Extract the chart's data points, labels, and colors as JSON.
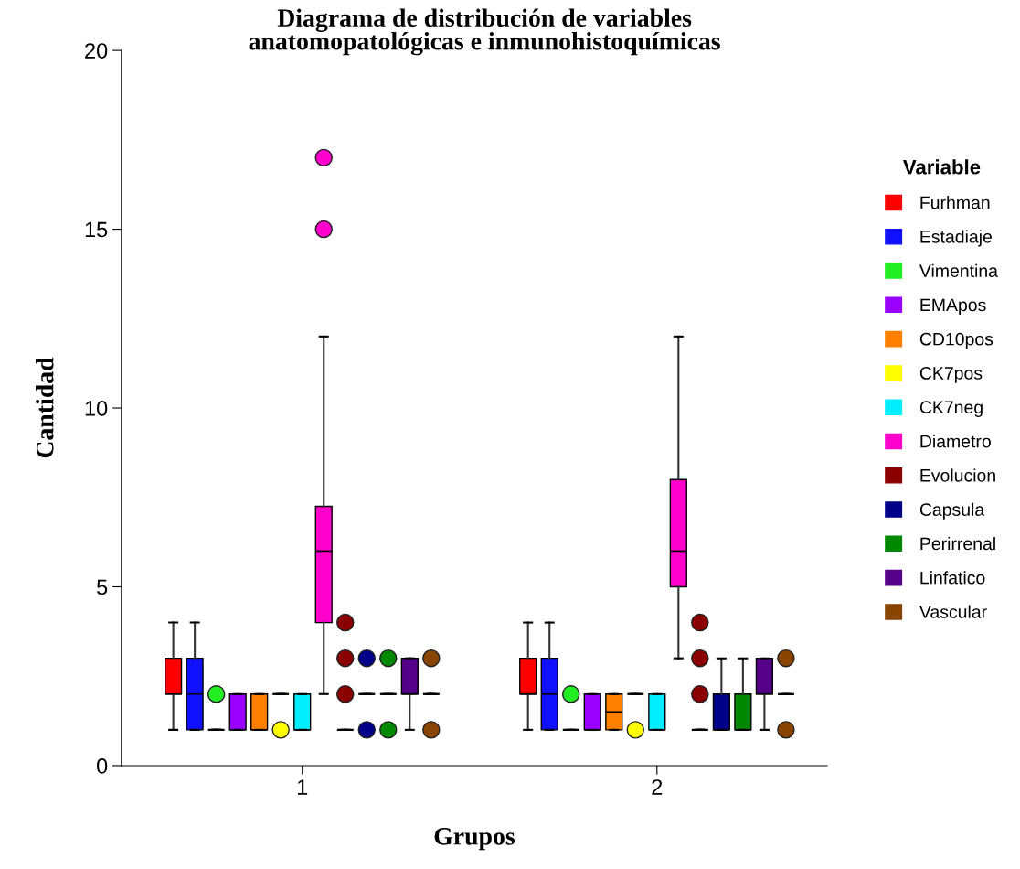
{
  "chart_data": {
    "type": "box",
    "title": "Diagrama de distribución de variables\nanatomopatológicas e inmunohistoquímicas",
    "xlabel": "Grupos",
    "ylabel": "Cantidad",
    "legend_title": "Variable",
    "categories": [
      "1",
      "2"
    ],
    "ylim": [
      0,
      20
    ],
    "yticks": [
      0,
      5,
      10,
      15,
      20
    ],
    "legend": "right",
    "series": [
      {
        "name": "Furhman",
        "color": "#ff0000",
        "boxes": [
          {
            "low": 1,
            "q1": 2,
            "median": 2,
            "q3": 3,
            "high": 4
          },
          {
            "low": 1,
            "q1": 2,
            "median": 2,
            "q3": 3,
            "high": 4
          }
        ]
      },
      {
        "name": "Estadiaje",
        "color": "#1010ff",
        "boxes": [
          {
            "low": 1,
            "q1": 1,
            "median": 2,
            "q3": 3,
            "high": 4
          },
          {
            "low": 1,
            "q1": 1,
            "median": 2,
            "q3": 3,
            "high": 4
          }
        ]
      },
      {
        "name": "Vimentina",
        "color": "#22ee22",
        "boxes": [
          {
            "low": 1,
            "q1": 1,
            "median": 1,
            "q3": 1,
            "high": 1,
            "outliers": [
              2
            ]
          },
          {
            "low": 1,
            "q1": 1,
            "median": 1,
            "q3": 1,
            "high": 1,
            "outliers": [
              2
            ]
          }
        ]
      },
      {
        "name": "EMApos",
        "color": "#9900ff",
        "boxes": [
          {
            "low": 1,
            "q1": 1,
            "median": 1,
            "q3": 2,
            "high": 2
          },
          {
            "low": 1,
            "q1": 1,
            "median": 1,
            "q3": 2,
            "high": 2
          }
        ]
      },
      {
        "name": "CD10pos",
        "color": "#ff8000",
        "boxes": [
          {
            "low": 1,
            "q1": 1,
            "median": 1,
            "q3": 2,
            "high": 2
          },
          {
            "low": 1,
            "q1": 1,
            "median": 1.5,
            "q3": 2,
            "high": 2
          }
        ]
      },
      {
        "name": "CK7pos",
        "color": "#ffff00",
        "boxes": [
          {
            "low": 2,
            "q1": 2,
            "median": 2,
            "q3": 2,
            "high": 2,
            "outliers": [
              1
            ]
          },
          {
            "low": 2,
            "q1": 2,
            "median": 2,
            "q3": 2,
            "high": 2,
            "outliers": [
              1
            ]
          }
        ]
      },
      {
        "name": "CK7neg",
        "color": "#00eeff",
        "boxes": [
          {
            "low": 1,
            "q1": 1,
            "median": 1,
            "q3": 2,
            "high": 2
          },
          {
            "low": 1,
            "q1": 1,
            "median": 1,
            "q3": 2,
            "high": 2
          }
        ]
      },
      {
        "name": "Diametro",
        "color": "#ff00cc",
        "boxes": [
          {
            "low": 2,
            "q1": 4,
            "median": 6,
            "q3": 7.25,
            "high": 12,
            "outliers": [
              15,
              17
            ]
          },
          {
            "low": 3,
            "q1": 5,
            "median": 6,
            "q3": 8,
            "high": 12
          }
        ]
      },
      {
        "name": "Evolucion",
        "color": "#8b0000",
        "boxes": [
          {
            "low": 1,
            "q1": 1,
            "median": 1,
            "q3": 1,
            "high": 1,
            "outliers": [
              2,
              3,
              4
            ]
          },
          {
            "low": 1,
            "q1": 1,
            "median": 1,
            "q3": 1,
            "high": 1,
            "outliers": [
              2,
              3,
              4
            ]
          }
        ]
      },
      {
        "name": "Capsula",
        "color": "#000088",
        "boxes": [
          {
            "low": 2,
            "q1": 2,
            "median": 2,
            "q3": 2,
            "high": 2,
            "outliers": [
              1,
              3
            ]
          },
          {
            "low": 1,
            "q1": 1,
            "median": 1,
            "q3": 2,
            "high": 3
          }
        ]
      },
      {
        "name": "Perirrenal",
        "color": "#008800",
        "boxes": [
          {
            "low": 2,
            "q1": 2,
            "median": 2,
            "q3": 2,
            "high": 2,
            "outliers": [
              1,
              3
            ]
          },
          {
            "low": 1,
            "q1": 1,
            "median": 1,
            "q3": 2,
            "high": 3
          }
        ]
      },
      {
        "name": "Linfatico",
        "color": "#550088",
        "boxes": [
          {
            "low": 1,
            "q1": 2,
            "median": 2,
            "q3": 3,
            "high": 3
          },
          {
            "low": 1,
            "q1": 2,
            "median": 2,
            "q3": 3,
            "high": 3
          }
        ]
      },
      {
        "name": "Vascular",
        "color": "#884400",
        "boxes": [
          {
            "low": 2,
            "q1": 2,
            "median": 2,
            "q3": 2,
            "high": 2,
            "outliers": [
              1,
              3
            ]
          },
          {
            "low": 2,
            "q1": 2,
            "median": 2,
            "q3": 2,
            "high": 2,
            "outliers": [
              1,
              3
            ]
          }
        ]
      }
    ]
  }
}
